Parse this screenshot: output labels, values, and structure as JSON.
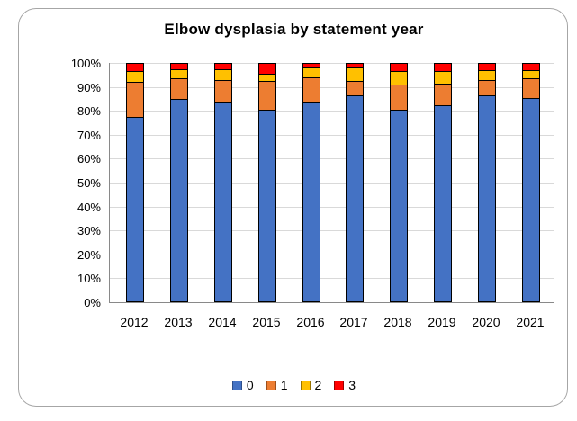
{
  "chart_data": {
    "type": "bar",
    "subtype": "stacked-100-percent",
    "title": "Elbow dysplasia by statement year",
    "categories": [
      "2012",
      "2013",
      "2014",
      "2015",
      "2016",
      "2017",
      "2018",
      "2019",
      "2020",
      "2021"
    ],
    "series": [
      {
        "name": "0",
        "color": "#4472C4",
        "border_color": "#2E4F8A",
        "values": [
          77.5,
          85,
          84,
          80.5,
          84,
          86.5,
          80.5,
          82.5,
          86.5,
          85.5
        ]
      },
      {
        "name": "1",
        "color": "#ED7D31",
        "border_color": "#9C4F1B",
        "values": [
          14.5,
          8.5,
          9,
          12,
          10,
          6,
          10.5,
          9,
          6.5,
          8
        ]
      },
      {
        "name": "2",
        "color": "#FFC000",
        "border_color": "#997300",
        "values": [
          4.5,
          4,
          4.5,
          3,
          4,
          5.5,
          5.5,
          5,
          4,
          3.5
        ]
      },
      {
        "name": "3",
        "color": "#FF0000",
        "border_color": "#990000",
        "values": [
          3.5,
          2.5,
          2.5,
          4.5,
          2,
          2,
          3.5,
          3.5,
          3,
          3
        ]
      }
    ],
    "values_unit": "percent",
    "ylim": [
      0,
      100
    ],
    "y_ticks": [
      "100%",
      "90%",
      "80%",
      "70%",
      "60%",
      "50%",
      "40%",
      "30%",
      "20%",
      "10%",
      "0%"
    ],
    "grid": true,
    "legend_position": "bottom",
    "xlabel": "",
    "ylabel": ""
  },
  "style": {
    "background": "#FFFFFF",
    "frame_border": "#A6A6A6",
    "gridline": "#D9D9D9",
    "axis_line": "#898989",
    "bar_outline": "#000000",
    "text_color": "#000000"
  }
}
